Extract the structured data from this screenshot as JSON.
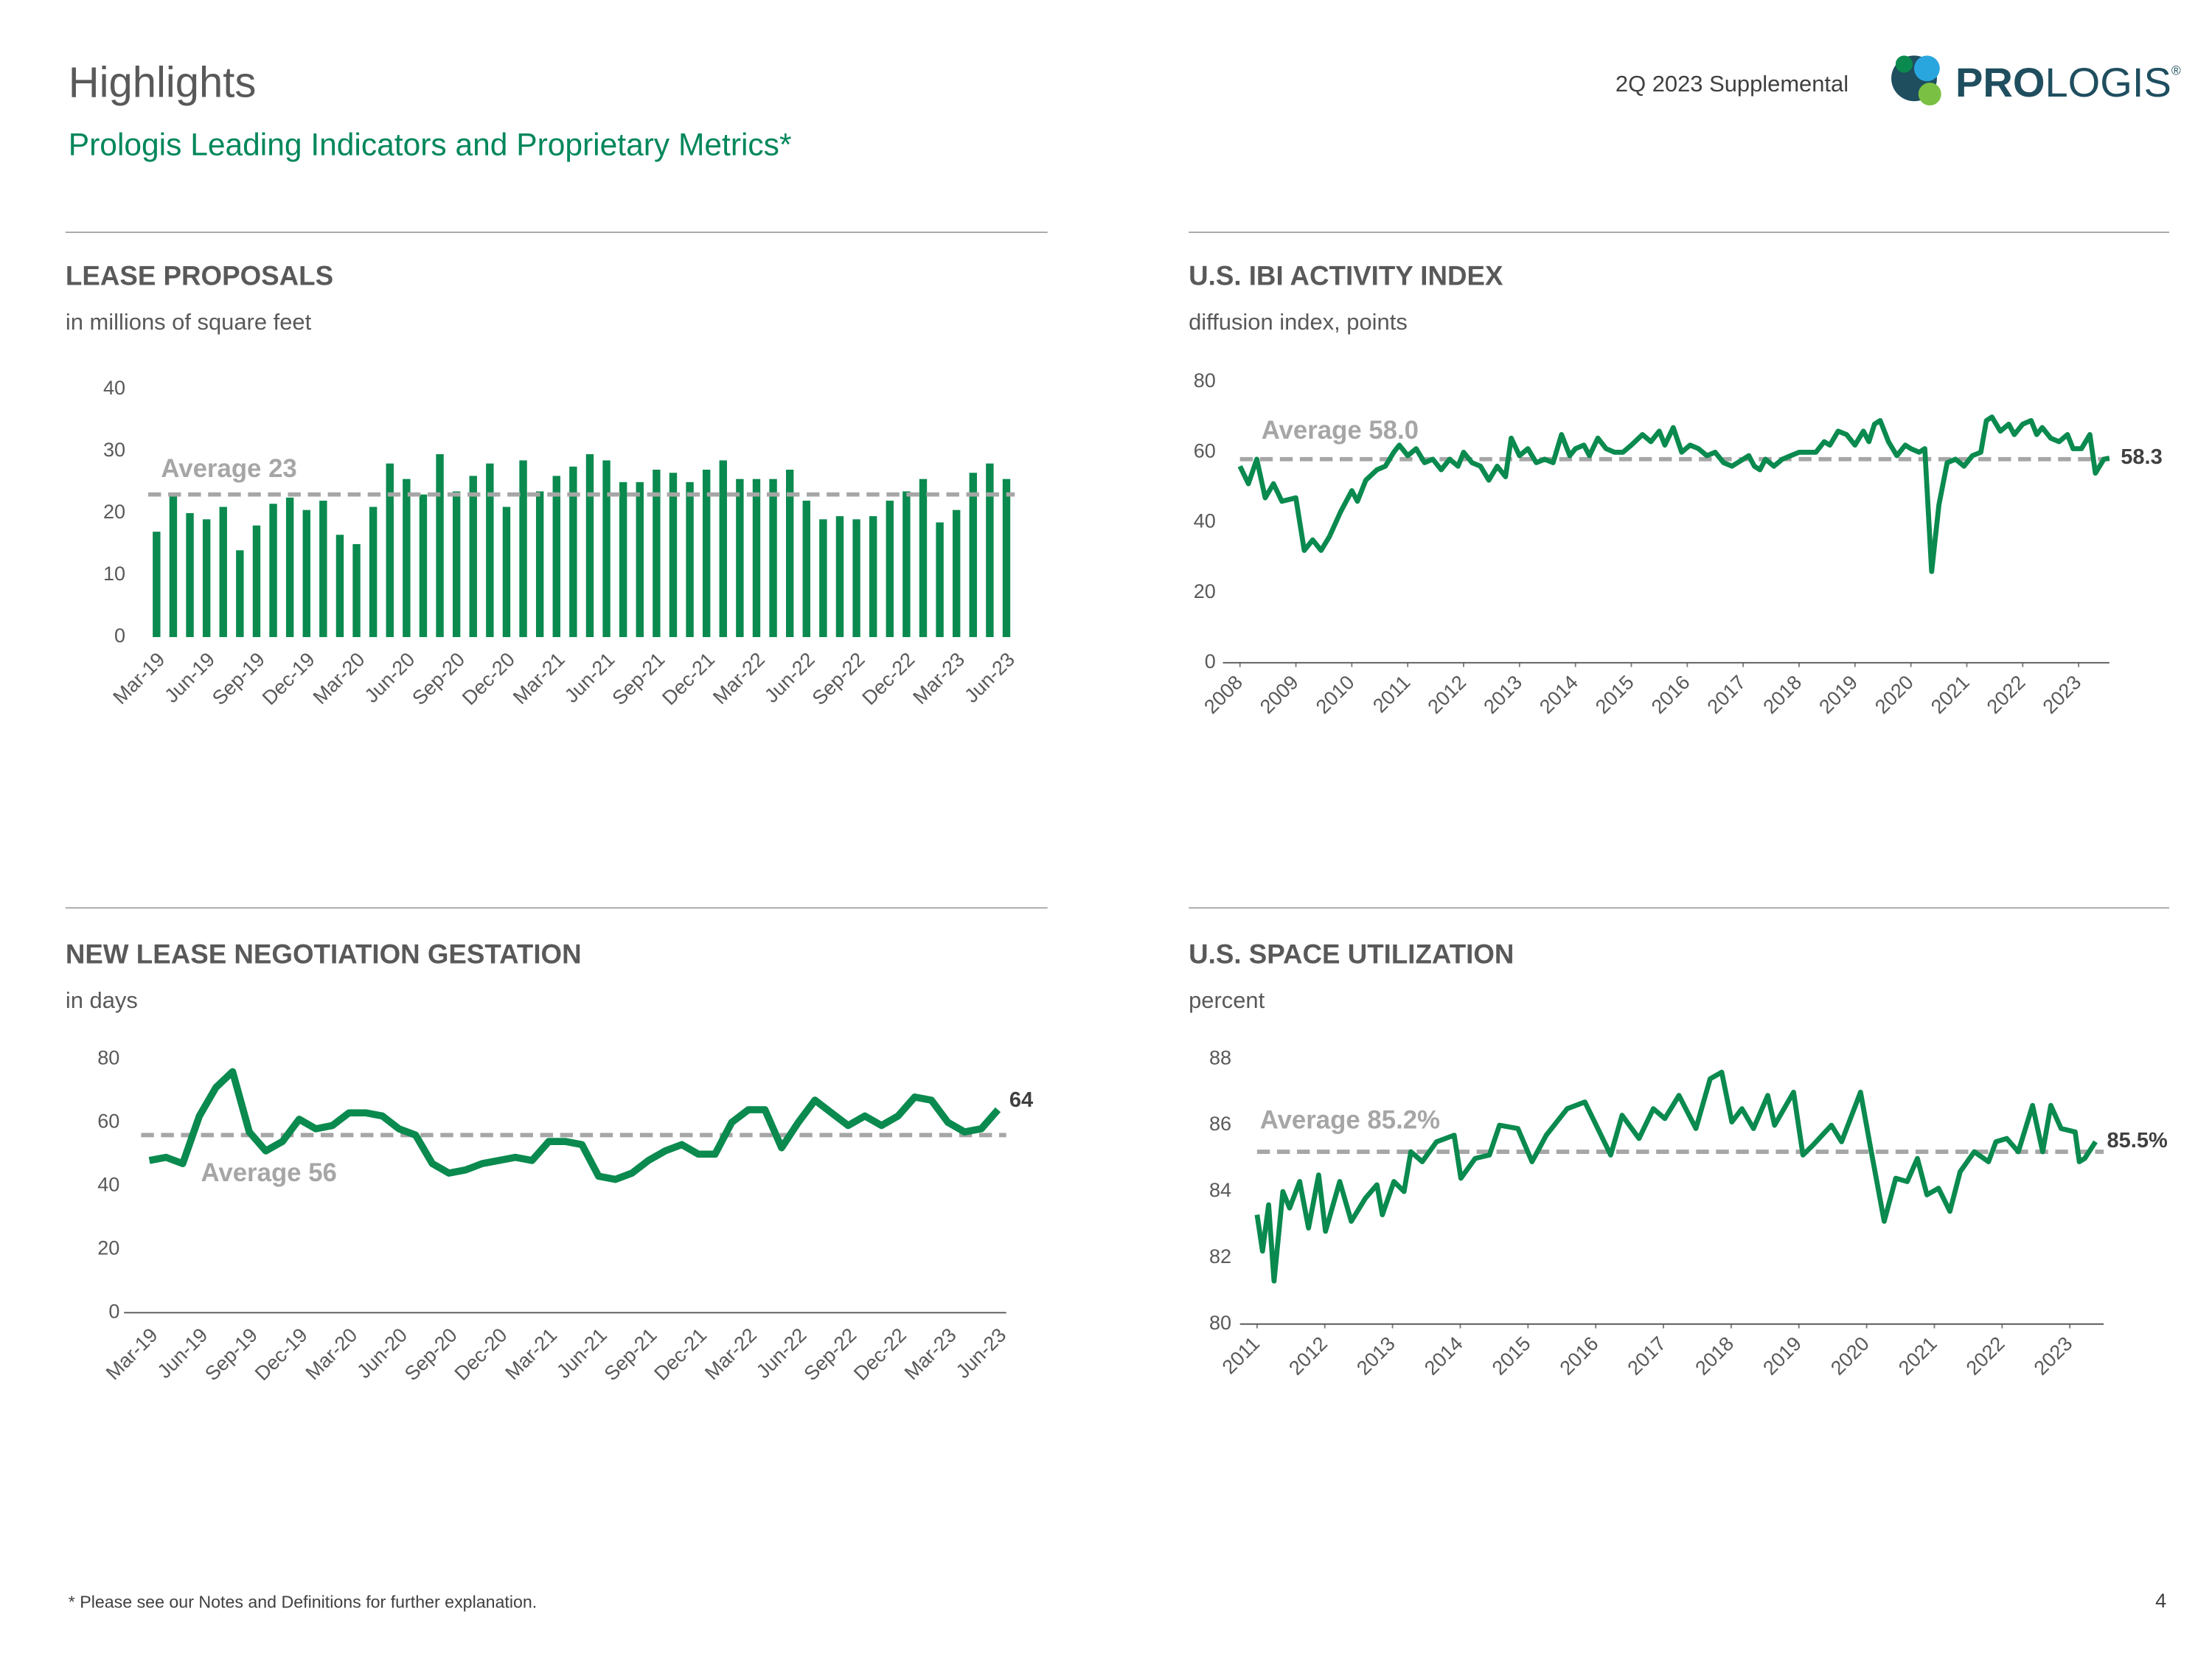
{
  "header": {
    "title": "Highlights",
    "subtitle": "Prologis Leading Indicators and Proprietary Metrics*",
    "report": "2Q 2023 Supplemental",
    "logo": [
      "PRO",
      "LOGIS",
      "®"
    ]
  },
  "footer": {
    "note": "* Please see our Notes and Definitions for further explanation.",
    "page": "4"
  },
  "chart_data": [
    {
      "type": "bar",
      "title": "LEASE PROPOSALS",
      "subtitle": "in millions of square feet",
      "color": "#0a8a4e",
      "categories": [
        "Mar-19",
        null,
        null,
        "Jun-19",
        null,
        null,
        "Sep-19",
        null,
        null,
        "Dec-19",
        null,
        null,
        "Mar-20",
        null,
        null,
        "Jun-20",
        null,
        null,
        "Sep-20",
        null,
        null,
        "Dec-20",
        null,
        null,
        "Mar-21",
        null,
        null,
        "Jun-21",
        null,
        null,
        "Sep-21",
        null,
        null,
        "Dec-21",
        null,
        null,
        "Mar-22",
        null,
        null,
        "Jun-22",
        null,
        null,
        "Sep-22",
        null,
        null,
        "Dec-22",
        null,
        null,
        "Mar-23",
        null,
        null,
        "Jun-23"
      ],
      "values": [
        17,
        23,
        20,
        19,
        21,
        14,
        18,
        21.5,
        22.5,
        20.5,
        22,
        16.5,
        15,
        21,
        28,
        25.5,
        23,
        29.5,
        23.5,
        26,
        28,
        21,
        28.5,
        23.5,
        26,
        27.5,
        29.5,
        28.5,
        25,
        25,
        27,
        26.5,
        25,
        27,
        28.5,
        25.5,
        25.5,
        25.5,
        27,
        22,
        19,
        19.5,
        19,
        19.5,
        22,
        23.5,
        25.5,
        18.5,
        20.5,
        26.5,
        28,
        25.5
      ],
      "ylim": [
        0,
        40
      ],
      "yticks": [
        0,
        10,
        20,
        30,
        40
      ],
      "average": 23,
      "average_label": "Average 23"
    },
    {
      "type": "line",
      "title": "U.S. IBI ACTIVITY INDEX",
      "subtitle": "diffusion index, points",
      "color": "#0a8a4e",
      "x": [
        2008.0,
        2008.15,
        2008.3,
        2008.45,
        2008.6,
        2008.75,
        2009.0,
        2009.15,
        2009.3,
        2009.45,
        2009.6,
        2009.8,
        2010.0,
        2010.1,
        2010.25,
        2010.45,
        2010.6,
        2010.75,
        2010.85,
        2011.0,
        2011.15,
        2011.3,
        2011.45,
        2011.6,
        2011.75,
        2011.9,
        2012.0,
        2012.15,
        2012.3,
        2012.45,
        2012.6,
        2012.75,
        2012.85,
        2013.0,
        2013.15,
        2013.3,
        2013.45,
        2013.6,
        2013.75,
        2013.9,
        2014.0,
        2014.15,
        2014.25,
        2014.4,
        2014.55,
        2014.7,
        2014.85,
        2015.0,
        2015.2,
        2015.35,
        2015.5,
        2015.6,
        2015.75,
        2015.9,
        2016.05,
        2016.2,
        2016.35,
        2016.5,
        2016.65,
        2016.8,
        2017.0,
        2017.1,
        2017.2,
        2017.3,
        2017.4,
        2017.55,
        2017.7,
        2017.85,
        2018.0,
        2018.15,
        2018.3,
        2018.45,
        2018.55,
        2018.7,
        2018.85,
        2019.0,
        2019.15,
        2019.25,
        2019.35,
        2019.45,
        2019.6,
        2019.75,
        2019.9,
        2020.0,
        2020.15,
        2020.25,
        2020.37,
        2020.5,
        2020.65,
        2020.8,
        2020.95,
        2021.1,
        2021.25,
        2021.35,
        2021.45,
        2021.6,
        2021.75,
        2021.85,
        2022.0,
        2022.15,
        2022.25,
        2022.35,
        2022.5,
        2022.65,
        2022.8,
        2022.9,
        2023.05,
        2023.2,
        2023.3,
        2023.45,
        2023.55
      ],
      "values": [
        56,
        51,
        58,
        47,
        51,
        46,
        47,
        32,
        35,
        32,
        36,
        43,
        49,
        46,
        52,
        55,
        56,
        60,
        62,
        59,
        61,
        57,
        58,
        55,
        58,
        56,
        60,
        57,
        56,
        52,
        56,
        53,
        64,
        59,
        61,
        57,
        58,
        57,
        65,
        59,
        61,
        62,
        59,
        64,
        61,
        60,
        60,
        62,
        65,
        63,
        66,
        62,
        67,
        60,
        62,
        61,
        59,
        60,
        57,
        56,
        58,
        59,
        56,
        55,
        58,
        56,
        58,
        59,
        60,
        60,
        60,
        63,
        62,
        66,
        65,
        62,
        66,
        63,
        68,
        69,
        63,
        59,
        62,
        61,
        60,
        61,
        26,
        45,
        57,
        58,
        56,
        59,
        60,
        69,
        70,
        66,
        68,
        65,
        68,
        69,
        65,
        67,
        64,
        63,
        65,
        61,
        61,
        65,
        54,
        58,
        58.3
      ],
      "value_labels": [
        null,
        null,
        null,
        null,
        null,
        null,
        null,
        null,
        null,
        null,
        null,
        null,
        null,
        null,
        null,
        null,
        null,
        null,
        null,
        null,
        null,
        null,
        null,
        null,
        null,
        null,
        null,
        null,
        null,
        null,
        null,
        null,
        null,
        null,
        null,
        null,
        null,
        null,
        null,
        null,
        null,
        null,
        null,
        null,
        null,
        null,
        null,
        null,
        null,
        null,
        null,
        null,
        null,
        null,
        null,
        null,
        null,
        null,
        null,
        null,
        null,
        null,
        null,
        null,
        null,
        null,
        null,
        null,
        null,
        null,
        null,
        null,
        null,
        null,
        null,
        null,
        null,
        null,
        null,
        null,
        null,
        null,
        null,
        null,
        null,
        null,
        null,
        null,
        null,
        null,
        null,
        null,
        null,
        null,
        null,
        null,
        null,
        null,
        null,
        null,
        null,
        null,
        null,
        null,
        null,
        null,
        null,
        null,
        null,
        null,
        "58.3"
      ],
      "xlim": [
        2008,
        2023.55
      ],
      "xticks": [
        2008,
        2009,
        2010,
        2011,
        2012,
        2013,
        2014,
        2015,
        2016,
        2017,
        2018,
        2019,
        2020,
        2021,
        2022,
        2023
      ],
      "ylim": [
        0,
        80
      ],
      "yticks": [
        0,
        20,
        40,
        60,
        80
      ],
      "average": 58.0,
      "average_label": "Average 58.0"
    },
    {
      "type": "line",
      "title": "NEW LEASE NEGOTIATION GESTATION",
      "subtitle": "in days",
      "color": "#0a8a4e",
      "categories": [
        "Mar-19",
        null,
        null,
        "Jun-19",
        null,
        null,
        "Sep-19",
        null,
        null,
        "Dec-19",
        null,
        null,
        "Mar-20",
        null,
        null,
        "Jun-20",
        null,
        null,
        "Sep-20",
        null,
        null,
        "Dec-20",
        null,
        null,
        "Mar-21",
        null,
        null,
        "Jun-21",
        null,
        null,
        "Sep-21",
        null,
        null,
        "Dec-21",
        null,
        null,
        "Mar-22",
        null,
        null,
        "Jun-22",
        null,
        null,
        "Sep-22",
        null,
        null,
        "Dec-22",
        null,
        null,
        "Mar-23",
        null,
        null,
        "Jun-23"
      ],
      "values": [
        48,
        49,
        47,
        62,
        71,
        76,
        57,
        51,
        54,
        61,
        58,
        59,
        63,
        63,
        62,
        58,
        56,
        47,
        44,
        45,
        47,
        48,
        49,
        48,
        54,
        54,
        53,
        43,
        42,
        44,
        48,
        51,
        53,
        50,
        50,
        60,
        64,
        64,
        52,
        60,
        67,
        63,
        59,
        62,
        59,
        62,
        68,
        67,
        60,
        57,
        58,
        64
      ],
      "value_labels": [
        null,
        null,
        null,
        null,
        null,
        null,
        null,
        null,
        null,
        null,
        null,
        null,
        null,
        null,
        null,
        null,
        null,
        null,
        null,
        null,
        null,
        null,
        null,
        null,
        null,
        null,
        null,
        null,
        null,
        null,
        null,
        null,
        null,
        null,
        null,
        null,
        null,
        null,
        null,
        null,
        null,
        null,
        null,
        null,
        null,
        null,
        null,
        null,
        null,
        null,
        null,
        "64"
      ],
      "ylim": [
        0,
        80
      ],
      "yticks": [
        0,
        20,
        40,
        60,
        80
      ],
      "average": 56,
      "average_label": "Average 56"
    },
    {
      "type": "line",
      "title": "U.S. SPACE UTILIZATION",
      "subtitle": "percent",
      "color": "#0a8a4e",
      "x": [
        2011.0,
        2011.08,
        2011.17,
        2011.25,
        2011.38,
        2011.48,
        2011.63,
        2011.76,
        2011.91,
        2012.01,
        2012.22,
        2012.39,
        2012.6,
        2012.77,
        2012.85,
        2013.02,
        2013.17,
        2013.27,
        2013.44,
        2013.65,
        2013.91,
        2014.01,
        2014.22,
        2014.43,
        2014.58,
        2014.85,
        2015.06,
        2015.27,
        2015.58,
        2015.84,
        2016.22,
        2016.39,
        2016.64,
        2016.85,
        2017.02,
        2017.23,
        2017.48,
        2017.69,
        2017.86,
        2018.01,
        2018.16,
        2018.33,
        2018.54,
        2018.64,
        2018.92,
        2019.06,
        2019.21,
        2019.48,
        2019.63,
        2019.91,
        2020.05,
        2020.26,
        2020.43,
        2020.6,
        2020.75,
        2020.89,
        2021.06,
        2021.23,
        2021.38,
        2021.59,
        2021.8,
        2021.91,
        2022.07,
        2022.24,
        2022.45,
        2022.6,
        2022.72,
        2022.87,
        2023.08,
        2023.14,
        2023.22,
        2023.38
      ],
      "values": [
        83.3,
        82.2,
        83.6,
        81.3,
        84,
        83.5,
        84.3,
        82.9,
        84.5,
        82.8,
        84.3,
        83.1,
        83.8,
        84.2,
        83.3,
        84.3,
        84,
        85.2,
        84.9,
        85.5,
        85.7,
        84.4,
        85,
        85.1,
        86,
        85.9,
        84.9,
        85.7,
        86.5,
        86.7,
        85.1,
        86.3,
        85.6,
        86.5,
        86.2,
        86.9,
        85.9,
        87.4,
        87.6,
        86.1,
        86.5,
        85.9,
        86.9,
        86,
        87,
        85.1,
        85.4,
        86,
        85.5,
        87,
        85.4,
        83.1,
        84.4,
        84.3,
        85,
        83.9,
        84.1,
        83.4,
        84.6,
        85.2,
        84.9,
        85.5,
        85.6,
        85.2,
        86.6,
        85.2,
        86.6,
        85.9,
        85.8,
        84.9,
        85,
        85.5
      ],
      "value_labels": [
        null,
        null,
        null,
        null,
        null,
        null,
        null,
        null,
        null,
        null,
        null,
        null,
        null,
        null,
        null,
        null,
        null,
        null,
        null,
        null,
        null,
        null,
        null,
        null,
        null,
        null,
        null,
        null,
        null,
        null,
        null,
        null,
        null,
        null,
        null,
        null,
        null,
        null,
        null,
        null,
        null,
        null,
        null,
        null,
        null,
        null,
        null,
        null,
        null,
        null,
        null,
        null,
        null,
        null,
        null,
        null,
        null,
        null,
        null,
        null,
        null,
        null,
        null,
        null,
        null,
        null,
        null,
        null,
        null,
        null,
        null,
        "85.5%"
      ],
      "xlim": [
        2011,
        2023.5
      ],
      "xticks": [
        2011,
        2012,
        2013,
        2014,
        2015,
        2016,
        2017,
        2018,
        2019,
        2020,
        2021,
        2022,
        2023
      ],
      "ylim": [
        80,
        88
      ],
      "yticks": [
        80,
        82,
        84,
        86,
        88
      ],
      "average": 85.2,
      "average_label": "Average 85.2%"
    }
  ]
}
